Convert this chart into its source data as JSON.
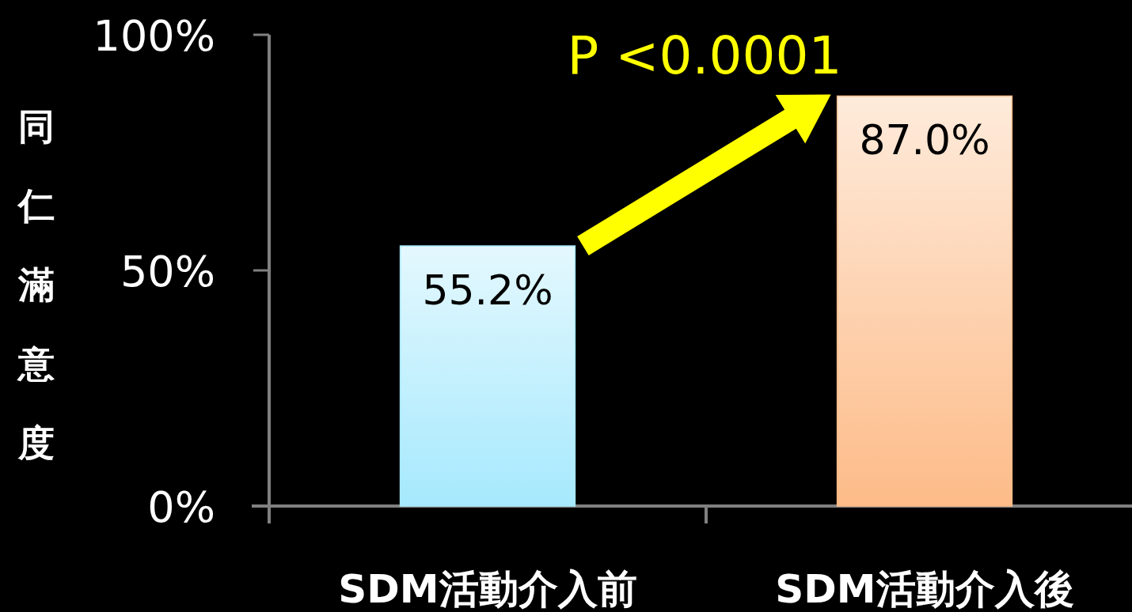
{
  "chart_data": {
    "type": "bar",
    "ylabel": "同仁滿意度",
    "categories": [
      "SDM活動介入前",
      "SDM活動介入後"
    ],
    "values": [
      55.2,
      87.0
    ],
    "colors": [
      "#a6e9fd",
      "#fdbb88"
    ],
    "value_labels": [
      "55.2%",
      "87.0%"
    ],
    "ylim": [
      0,
      100
    ],
    "yticks": [
      {
        "value": 0,
        "label": "0%"
      },
      {
        "value": 50,
        "label": "50%"
      },
      {
        "value": 100,
        "label": "100%"
      }
    ],
    "annotations": [
      "P <0.0001"
    ]
  }
}
